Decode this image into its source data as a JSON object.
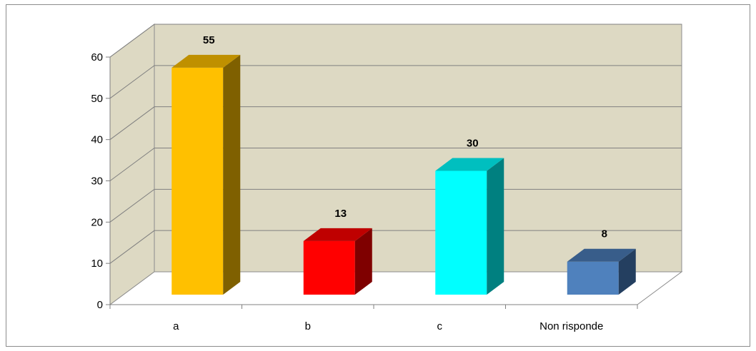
{
  "chart_data": {
    "type": "bar",
    "style": "3d-column",
    "categories": [
      "a",
      "b",
      "c",
      "Non risponde"
    ],
    "values": [
      55,
      13,
      30,
      8
    ],
    "data_labels": [
      "55",
      "13",
      "30",
      "8"
    ],
    "ylim": [
      0,
      60
    ],
    "yticks": [
      "0",
      "10",
      "20",
      "30",
      "40",
      "50",
      "60"
    ],
    "grid": true,
    "legend": "none",
    "title": "",
    "xlabel": "",
    "ylabel": "",
    "colors": {
      "bars": [
        "#FFC000",
        "#FF0000",
        "#00FFFF",
        "#4F81BD"
      ],
      "bar_sides": [
        "#7F6000",
        "#7F0000",
        "#008080",
        "#243F60"
      ],
      "bar_tops": [
        "#BF9000",
        "#BF0000",
        "#00BFBF",
        "#385D8A"
      ],
      "back_wall": "#DDD9C3",
      "side_wall": "#DDD9C3",
      "floor": "#FFFFFF",
      "gridline": "#808080"
    }
  }
}
